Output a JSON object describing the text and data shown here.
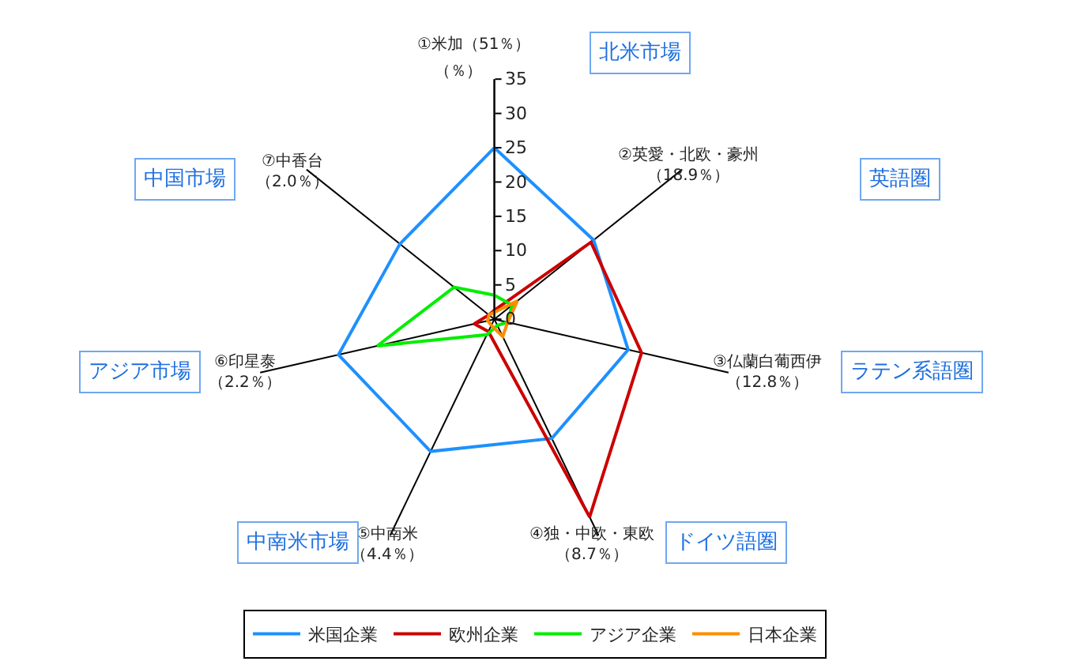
{
  "chart_data": {
    "type": "radar",
    "categories": [
      "①米加（51％）",
      "②英愛・北欧・豪州（18.9％）",
      "③仏蘭白葡西伊（12.8％）",
      "④独・中欧・東欧（8.7％）",
      "⑤中南米（4.4％）",
      "⑥印星泰（2.2％）",
      "⑦中香台（2.0％）"
    ],
    "ylabel": "（％）",
    "ylim": [
      0,
      35
    ],
    "yticks": [
      0,
      5,
      10,
      15,
      20,
      25,
      30,
      35
    ],
    "series": [
      {
        "name": "米国企業",
        "color": "#1e90ff",
        "values": [
          25,
          18.5,
          20,
          19.3,
          21.4,
          23.3,
          17.6
        ]
      },
      {
        "name": "欧州企業",
        "color": "#cc0000",
        "values": [
          1.3,
          18,
          22,
          32,
          2,
          3,
          1
        ]
      },
      {
        "name": "アジア企業",
        "color": "#00ee00",
        "values": [
          3.5,
          3.3,
          2,
          1,
          2.5,
          17.5,
          7.5
        ]
      },
      {
        "name": "日本企業",
        "color": "#ff8c00",
        "values": [
          1,
          4.3,
          2,
          2.8,
          1,
          1,
          1
        ]
      }
    ],
    "annotations": [
      "北米市場",
      "英語圏",
      "ラテン系語圏",
      "ドイツ語圏",
      "中南米市場",
      "アジア市場",
      "中国市場"
    ],
    "legend": "bottom",
    "grid": "x",
    "marker": "none",
    "line_style": "solid"
  }
}
